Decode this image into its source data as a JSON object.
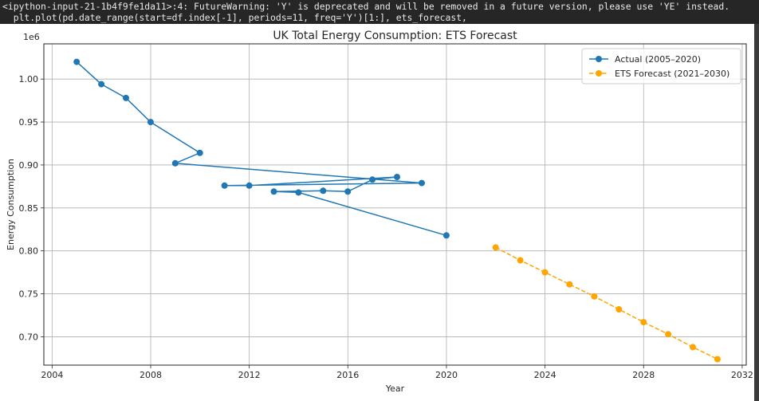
{
  "output": {
    "warning_line_1": "<ipython-input-21-1b4f9fe1da11>:4: FutureWarning: 'Y' is deprecated and will be removed in a future version, please use 'YE' instead.",
    "warning_line_2": "  plt.plot(pd.date_range(start=df.index[-1], periods=11, freq='Y')[1:], ets_forecast,"
  },
  "chart_data": {
    "type": "line",
    "title": "UK Total Energy Consumption: ETS Forecast",
    "xlabel": "Year",
    "ylabel": "Energy Consumption",
    "y_offset_label": "1e6",
    "xlim": [
      "2003-09-01",
      "2032-03-01"
    ],
    "ylim": [
      0.667,
      1.041
    ],
    "x_ticks": [
      "2004",
      "2008",
      "2012",
      "2016",
      "2020",
      "2024",
      "2028",
      "2032"
    ],
    "y_ticks": [
      "0.70",
      "0.75",
      "0.80",
      "0.85",
      "0.90",
      "0.95",
      "1.00"
    ],
    "grid": true,
    "legend_placement": "top-right",
    "series": [
      {
        "name": "Actual (2005–2020)",
        "color": "#1f77b4",
        "linestyle": "solid",
        "points": [
          {
            "x": "2004-12-31",
            "y": 1.02
          },
          {
            "x": "2005-12-31",
            "y": 0.994
          },
          {
            "x": "2006-12-31",
            "y": 0.978
          },
          {
            "x": "2007-12-31",
            "y": 0.95
          },
          {
            "x": "2009-12-31",
            "y": 0.914
          },
          {
            "x": "2008-12-31",
            "y": 0.902
          },
          {
            "x": "2018-12-31",
            "y": 0.879
          },
          {
            "x": "2010-12-31",
            "y": 0.876
          },
          {
            "x": "2011-12-31",
            "y": 0.876
          },
          {
            "x": "2017-12-31",
            "y": 0.886
          },
          {
            "x": "2016-12-31",
            "y": 0.883
          },
          {
            "x": "2015-12-31",
            "y": 0.869
          },
          {
            "x": "2014-12-31",
            "y": 0.87
          },
          {
            "x": "2012-12-31",
            "y": 0.869
          },
          {
            "x": "2013-12-31",
            "y": 0.868
          },
          {
            "x": "2019-12-31",
            "y": 0.818
          }
        ]
      },
      {
        "name": "ETS Forecast (2021–2030)",
        "color": "#ffa500",
        "linestyle": "dashed",
        "points": [
          {
            "x": "2021-12-31",
            "y": 0.804
          },
          {
            "x": "2022-12-31",
            "y": 0.789
          },
          {
            "x": "2023-12-31",
            "y": 0.775
          },
          {
            "x": "2024-12-31",
            "y": 0.761
          },
          {
            "x": "2025-12-31",
            "y": 0.747
          },
          {
            "x": "2026-12-31",
            "y": 0.732
          },
          {
            "x": "2027-12-31",
            "y": 0.717
          },
          {
            "x": "2028-12-31",
            "y": 0.703
          },
          {
            "x": "2029-12-31",
            "y": 0.688
          },
          {
            "x": "2030-12-31",
            "y": 0.674
          }
        ]
      }
    ]
  }
}
